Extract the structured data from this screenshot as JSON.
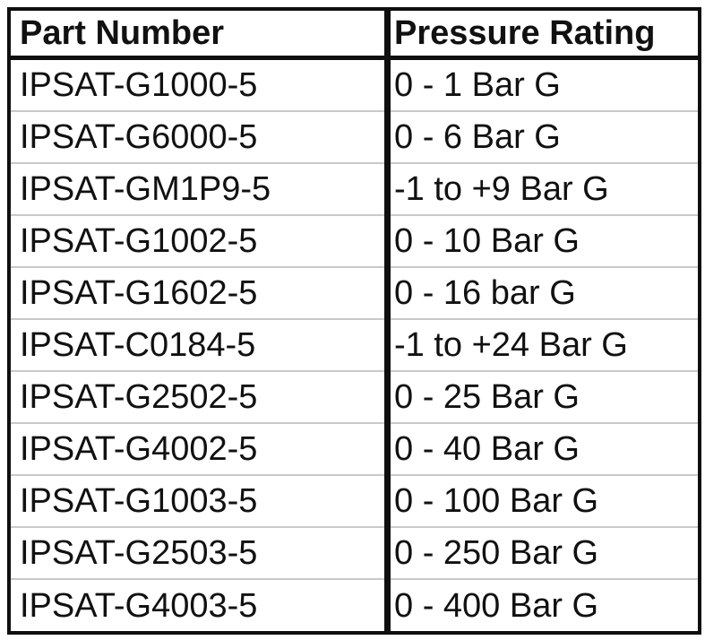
{
  "table": {
    "headers": [
      "Part Number",
      "Pressure Rating"
    ],
    "rows": [
      [
        "IPSAT-G1000-5",
        "0 - 1 Bar G"
      ],
      [
        "IPSAT-G6000-5",
        "0 - 6 Bar G"
      ],
      [
        "IPSAT-GM1P9-5",
        "-1 to +9 Bar G"
      ],
      [
        "IPSAT-G1002-5",
        "0 - 10 Bar G"
      ],
      [
        "IPSAT-G1602-5",
        "0 - 16 bar G"
      ],
      [
        "IPSAT-C0184-5",
        "-1 to +24 Bar G"
      ],
      [
        "IPSAT-G2502-5",
        "0 - 25 Bar G"
      ],
      [
        "IPSAT-G4002-5",
        "0 - 40 Bar G"
      ],
      [
        "IPSAT-G1003-5",
        "0 - 100 Bar G"
      ],
      [
        "IPSAT-G2503-5",
        "0 - 250 Bar G"
      ],
      [
        "IPSAT-G4003-5",
        "0 - 400 Bar G"
      ]
    ]
  }
}
